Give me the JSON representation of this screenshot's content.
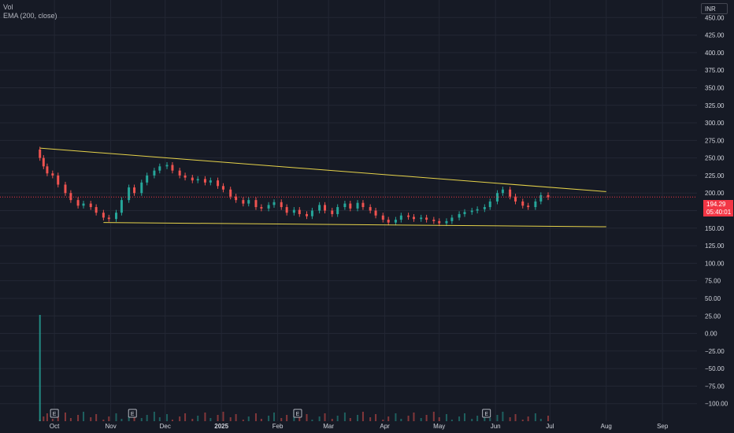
{
  "legend": {
    "vol": "Vol",
    "ema": "EMA (200, close)"
  },
  "currency_label": "INR",
  "last_price": {
    "value": "194.29",
    "countdown": "05:40:01"
  },
  "colors": {
    "background": "#161a25",
    "grid": "#232734",
    "up": "#26a69a",
    "down": "#ef5350",
    "trendline": "#e6d34a",
    "price_line": "#f23645"
  },
  "chart_data": {
    "type": "candlestick",
    "title": "",
    "x_tick_labels": [
      "Oct",
      "Nov",
      "Dec",
      "2025",
      "Feb",
      "Mar",
      "Apr",
      "May",
      "Jun",
      "Jul",
      "Aug",
      "Sep"
    ],
    "y_tick_labels": [
      "450.00",
      "425.00",
      "400.00",
      "375.00",
      "350.00",
      "325.00",
      "300.00",
      "275.00",
      "250.00",
      "225.00",
      "200.00",
      "175.00",
      "150.00",
      "125.00",
      "100.00",
      "75.00",
      "50.00",
      "25.00",
      "0.00",
      "−25.00",
      "−50.00",
      "−75.00",
      "−100.00"
    ],
    "y_ticks": [
      450,
      425,
      400,
      375,
      350,
      325,
      300,
      275,
      250,
      225,
      200,
      175,
      150,
      125,
      100,
      75,
      50,
      25,
      0,
      -25,
      -50,
      -75,
      -100
    ],
    "x_ticks": [
      "2024-10-01",
      "2024-11-01",
      "2024-12-01",
      "2025-01-01",
      "2025-02-01",
      "2025-03-01",
      "2025-04-01",
      "2025-05-01",
      "2025-06-01",
      "2025-07-01",
      "2025-08-01",
      "2025-09-01"
    ],
    "x_range": [
      "2024-09-01",
      "2025-09-20"
    ],
    "y_range": [
      -125,
      475
    ],
    "price_closes": [
      [
        "2024-09-23",
        250
      ],
      [
        "2024-09-25",
        238
      ],
      [
        "2024-09-27",
        228
      ],
      [
        "2024-09-30",
        225
      ],
      [
        "2024-10-03",
        212
      ],
      [
        "2024-10-07",
        200
      ],
      [
        "2024-10-10",
        190
      ],
      [
        "2024-10-14",
        182
      ],
      [
        "2024-10-17",
        185
      ],
      [
        "2024-10-21",
        180
      ],
      [
        "2024-10-24",
        172
      ],
      [
        "2024-10-28",
        165
      ],
      [
        "2024-10-31",
        163
      ],
      [
        "2024-11-04",
        172
      ],
      [
        "2024-11-07",
        190
      ],
      [
        "2024-11-11",
        208
      ],
      [
        "2024-11-14",
        200
      ],
      [
        "2024-11-18",
        215
      ],
      [
        "2024-11-21",
        225
      ],
      [
        "2024-11-25",
        232
      ],
      [
        "2024-11-28",
        238
      ],
      [
        "2024-12-02",
        240
      ],
      [
        "2024-12-05",
        232
      ],
      [
        "2024-12-09",
        225
      ],
      [
        "2024-12-12",
        222
      ],
      [
        "2024-12-16",
        218
      ],
      [
        "2024-12-19",
        220
      ],
      [
        "2024-12-23",
        215
      ],
      [
        "2024-12-26",
        218
      ],
      [
        "2024-12-30",
        210
      ],
      [
        "2025-01-02",
        205
      ],
      [
        "2025-01-06",
        195
      ],
      [
        "2025-01-09",
        190
      ],
      [
        "2025-01-13",
        185
      ],
      [
        "2025-01-16",
        190
      ],
      [
        "2025-01-20",
        180
      ],
      [
        "2025-01-23",
        178
      ],
      [
        "2025-01-27",
        183
      ],
      [
        "2025-01-30",
        187
      ],
      [
        "2025-02-03",
        180
      ],
      [
        "2025-02-06",
        172
      ],
      [
        "2025-02-10",
        176
      ],
      [
        "2025-02-13",
        170
      ],
      [
        "2025-02-17",
        167
      ],
      [
        "2025-02-20",
        175
      ],
      [
        "2025-02-24",
        183
      ],
      [
        "2025-02-27",
        175
      ],
      [
        "2025-03-03",
        170
      ],
      [
        "2025-03-06",
        180
      ],
      [
        "2025-03-10",
        185
      ],
      [
        "2025-03-13",
        178
      ],
      [
        "2025-03-17",
        186
      ],
      [
        "2025-03-20",
        180
      ],
      [
        "2025-03-24",
        175
      ],
      [
        "2025-03-27",
        168
      ],
      [
        "2025-03-31",
        162
      ],
      [
        "2025-04-03",
        158
      ],
      [
        "2025-04-07",
        162
      ],
      [
        "2025-04-10",
        168
      ],
      [
        "2025-04-14",
        166
      ],
      [
        "2025-04-17",
        163
      ],
      [
        "2025-04-21",
        165
      ],
      [
        "2025-04-24",
        162
      ],
      [
        "2025-04-28",
        160
      ],
      [
        "2025-05-01",
        157
      ],
      [
        "2025-05-05",
        160
      ],
      [
        "2025-05-08",
        165
      ],
      [
        "2025-05-12",
        170
      ],
      [
        "2025-05-15",
        173
      ],
      [
        "2025-05-19",
        175
      ],
      [
        "2025-05-22",
        177
      ],
      [
        "2025-05-26",
        180
      ],
      [
        "2025-05-29",
        188
      ],
      [
        "2025-06-02",
        200
      ],
      [
        "2025-06-05",
        205
      ],
      [
        "2025-06-09",
        195
      ],
      [
        "2025-06-12",
        188
      ],
      [
        "2025-06-16",
        182
      ],
      [
        "2025-06-19",
        180
      ],
      [
        "2025-06-23",
        188
      ],
      [
        "2025-06-26",
        197
      ],
      [
        "2025-06-30",
        194
      ]
    ],
    "trendlines": [
      {
        "from": [
          "2024-09-23",
          264
        ],
        "to": [
          "2025-08-01",
          202
        ]
      },
      {
        "from": [
          "2024-10-28",
          158
        ],
        "to": [
          "2025-08-01",
          152
        ]
      }
    ],
    "volume_markers": [
      "2024-09-23"
    ],
    "event_labels": [
      {
        "date": "2024-10-01",
        "text": "E"
      },
      {
        "date": "2024-11-13",
        "text": "E"
      },
      {
        "date": "2025-02-12",
        "text": "E"
      },
      {
        "date": "2025-05-27",
        "text": "E"
      }
    ],
    "last_value": 194.29,
    "grid": true,
    "scale": "linear"
  }
}
